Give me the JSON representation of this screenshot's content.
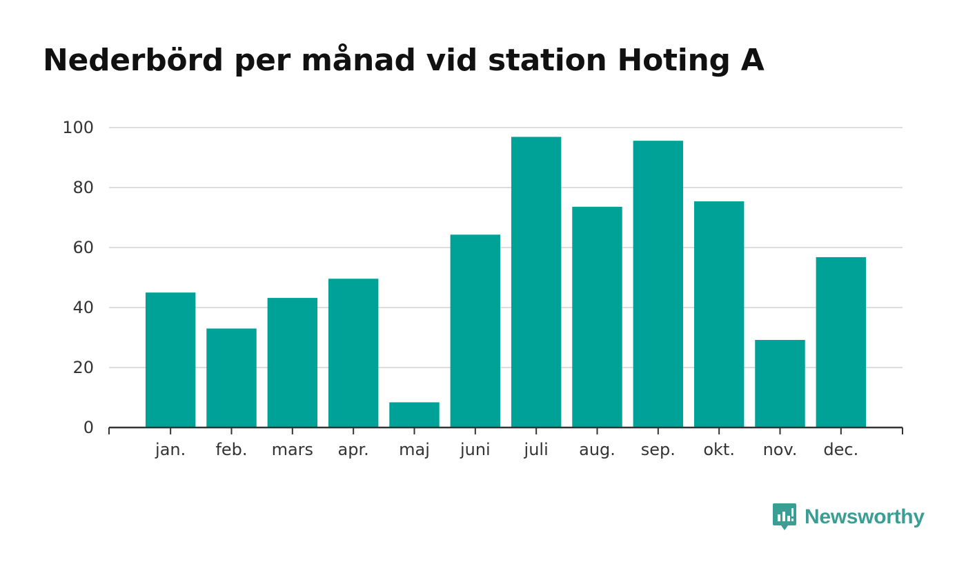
{
  "chart_data": {
    "type": "bar",
    "title": "Nederbörd per månad vid station Hoting A",
    "categories": [
      "jan.",
      "feb.",
      "mars",
      "apr.",
      "maj",
      "juni",
      "juli",
      "aug.",
      "sep.",
      "okt.",
      "nov.",
      "dec."
    ],
    "values": [
      45,
      33,
      43.2,
      49.6,
      8.4,
      64.3,
      96.9,
      73.6,
      95.6,
      75.4,
      29.2,
      56.8
    ],
    "ylim": [
      0,
      100
    ],
    "yticks": [
      0,
      20,
      40,
      60,
      80,
      100
    ],
    "xlabel": "",
    "ylabel": "",
    "grid": true,
    "legend": "none",
    "colors": {
      "bar": "#00a297",
      "grid": "#dddddd",
      "axis": "#333333"
    }
  },
  "brand": {
    "name": "Newsworthy",
    "color": "#3a9e95",
    "icon": "newsworthy-logo-icon"
  }
}
